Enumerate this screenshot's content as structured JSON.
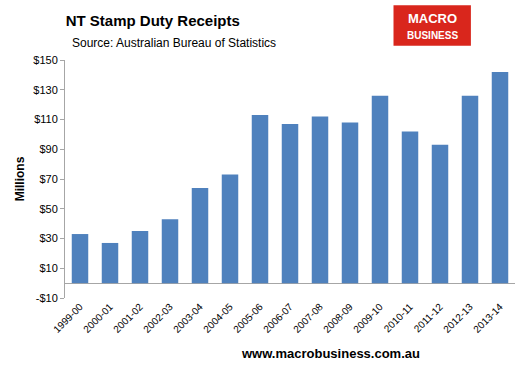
{
  "chart_data": {
    "type": "bar",
    "title": "NT Stamp Duty Receipts",
    "subtitle": "Source: Australian Bureau of Statistics",
    "y_label": "Millions",
    "categories": [
      "1999-00",
      "2000-01",
      "2001-02",
      "2002-03",
      "2003-04",
      "2004-05",
      "2005-06",
      "2006-07",
      "2007-08",
      "2008-09",
      "2009-10",
      "2010-11",
      "2011-12",
      "2012-13",
      "2013-14"
    ],
    "values": [
      33,
      27,
      35,
      43,
      64,
      73,
      113,
      107,
      112,
      108,
      126,
      102,
      93,
      126,
      142
    ],
    "color": "#4f81bd",
    "ylim": [
      -10,
      150
    ],
    "yticks": [
      {
        "value": -10,
        "label": "-$10"
      },
      {
        "value": 10,
        "label": "$10"
      },
      {
        "value": 30,
        "label": "$30"
      },
      {
        "value": 50,
        "label": "$50"
      },
      {
        "value": 70,
        "label": "$70"
      },
      {
        "value": 90,
        "label": "$90"
      },
      {
        "value": 110,
        "label": "$110"
      },
      {
        "value": 130,
        "label": "$130"
      },
      {
        "value": 150,
        "label": "$150"
      }
    ],
    "grid": false,
    "annotations": [
      "MACRO",
      "BUSINESS",
      "www.macrobusiness.com.au"
    ]
  }
}
